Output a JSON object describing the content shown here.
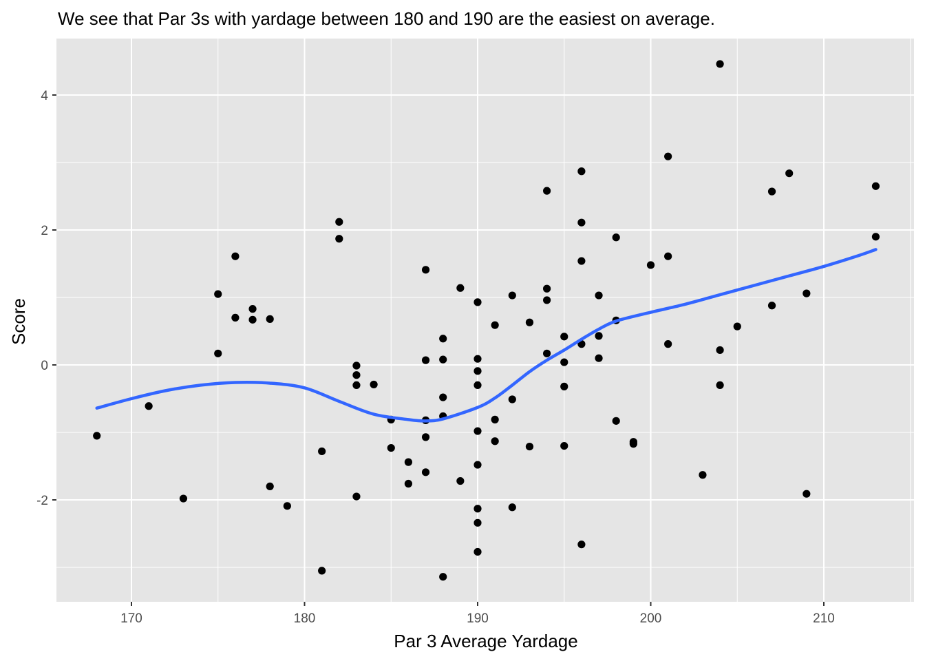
{
  "chart_data": {
    "type": "scatter",
    "title": "We see that Par 3s with yardage between 180 and 190 are the easiest on average.",
    "xlabel": "Par 3 Average Yardage",
    "ylabel": "Score",
    "xlim": [
      166,
      215
    ],
    "ylim": [
      -3.5,
      4.8
    ],
    "x_ticks": [
      170,
      180,
      190,
      200,
      210
    ],
    "y_ticks": [
      -2,
      0,
      2,
      4
    ],
    "grid": true,
    "legend": "none",
    "colors": {
      "panel_background": "#e5e5e5",
      "grid": "#ffffff",
      "points": "#000000",
      "smooth_line": "#3366ff",
      "tick_label": "#4d4d4d"
    },
    "points": [
      {
        "x": 168,
        "y": -1.05
      },
      {
        "x": 171,
        "y": -0.61
      },
      {
        "x": 173,
        "y": -1.98
      },
      {
        "x": 175,
        "y": 1.05
      },
      {
        "x": 175,
        "y": 0.17
      },
      {
        "x": 176,
        "y": 1.61
      },
      {
        "x": 176,
        "y": 0.7
      },
      {
        "x": 177,
        "y": 0.83
      },
      {
        "x": 177,
        "y": 0.67
      },
      {
        "x": 178,
        "y": 0.68
      },
      {
        "x": 178,
        "y": -1.8
      },
      {
        "x": 179,
        "y": -2.09
      },
      {
        "x": 181,
        "y": -1.28
      },
      {
        "x": 181,
        "y": -3.05
      },
      {
        "x": 182,
        "y": 2.12
      },
      {
        "x": 182,
        "y": 1.87
      },
      {
        "x": 183,
        "y": -0.01
      },
      {
        "x": 183,
        "y": -0.15
      },
      {
        "x": 183,
        "y": -0.3
      },
      {
        "x": 183,
        "y": -1.95
      },
      {
        "x": 184,
        "y": -0.29
      },
      {
        "x": 185,
        "y": -0.81
      },
      {
        "x": 185,
        "y": -1.23
      },
      {
        "x": 186,
        "y": -1.44
      },
      {
        "x": 186,
        "y": -1.76
      },
      {
        "x": 187,
        "y": 1.41
      },
      {
        "x": 187,
        "y": 0.07
      },
      {
        "x": 187,
        "y": -0.82
      },
      {
        "x": 187,
        "y": -1.07
      },
      {
        "x": 187,
        "y": -1.59
      },
      {
        "x": 188,
        "y": 0.39
      },
      {
        "x": 188,
        "y": 0.08
      },
      {
        "x": 188,
        "y": -0.48
      },
      {
        "x": 188,
        "y": -0.76
      },
      {
        "x": 188,
        "y": -3.14
      },
      {
        "x": 189,
        "y": 1.14
      },
      {
        "x": 189,
        "y": -1.72
      },
      {
        "x": 190,
        "y": 0.93
      },
      {
        "x": 190,
        "y": 0.09
      },
      {
        "x": 190,
        "y": -0.09
      },
      {
        "x": 190,
        "y": -0.3
      },
      {
        "x": 190,
        "y": -0.98
      },
      {
        "x": 190,
        "y": -1.48
      },
      {
        "x": 190,
        "y": -2.13
      },
      {
        "x": 190,
        "y": -2.34
      },
      {
        "x": 190,
        "y": -2.77
      },
      {
        "x": 191,
        "y": 0.59
      },
      {
        "x": 191,
        "y": -0.81
      },
      {
        "x": 191,
        "y": -1.13
      },
      {
        "x": 192,
        "y": 1.03
      },
      {
        "x": 192,
        "y": -0.51
      },
      {
        "x": 192,
        "y": -2.11
      },
      {
        "x": 193,
        "y": 0.63
      },
      {
        "x": 193,
        "y": -1.21
      },
      {
        "x": 194,
        "y": 2.58
      },
      {
        "x": 194,
        "y": 1.13
      },
      {
        "x": 194,
        "y": 0.96
      },
      {
        "x": 194,
        "y": 0.17
      },
      {
        "x": 195,
        "y": 0.42
      },
      {
        "x": 195,
        "y": 0.04
      },
      {
        "x": 195,
        "y": -0.32
      },
      {
        "x": 195,
        "y": -1.2
      },
      {
        "x": 196,
        "y": 2.87
      },
      {
        "x": 196,
        "y": 2.11
      },
      {
        "x": 196,
        "y": 1.54
      },
      {
        "x": 196,
        "y": 0.31
      },
      {
        "x": 196,
        "y": -2.66
      },
      {
        "x": 197,
        "y": 1.03
      },
      {
        "x": 197,
        "y": 0.43
      },
      {
        "x": 197,
        "y": 0.1
      },
      {
        "x": 198,
        "y": 1.89
      },
      {
        "x": 198,
        "y": 0.66
      },
      {
        "x": 198,
        "y": -0.83
      },
      {
        "x": 199,
        "y": -1.14
      },
      {
        "x": 199,
        "y": -1.17
      },
      {
        "x": 200,
        "y": 1.48
      },
      {
        "x": 201,
        "y": 3.09
      },
      {
        "x": 201,
        "y": 1.61
      },
      {
        "x": 201,
        "y": 0.31
      },
      {
        "x": 203,
        "y": -1.63
      },
      {
        "x": 204,
        "y": 4.46
      },
      {
        "x": 204,
        "y": 0.22
      },
      {
        "x": 204,
        "y": -0.3
      },
      {
        "x": 205,
        "y": 0.57
      },
      {
        "x": 207,
        "y": 2.57
      },
      {
        "x": 207,
        "y": 0.88
      },
      {
        "x": 208,
        "y": 2.84
      },
      {
        "x": 209,
        "y": 1.06
      },
      {
        "x": 209,
        "y": -1.91
      },
      {
        "x": 213,
        "y": 2.65
      },
      {
        "x": 213,
        "y": 1.9
      }
    ],
    "smooth": {
      "method": "loess",
      "x": [
        168,
        170,
        172,
        174,
        176,
        178,
        180,
        182,
        184,
        186,
        187,
        188,
        190,
        191,
        192,
        193,
        194,
        195,
        196,
        197,
        198,
        200,
        202,
        204,
        206,
        208,
        210,
        212,
        213
      ],
      "y": [
        -0.64,
        -0.5,
        -0.38,
        -0.3,
        -0.26,
        -0.27,
        -0.34,
        -0.54,
        -0.73,
        -0.81,
        -0.83,
        -0.8,
        -0.63,
        -0.49,
        -0.3,
        -0.1,
        0.07,
        0.22,
        0.38,
        0.53,
        0.65,
        0.78,
        0.9,
        1.04,
        1.18,
        1.32,
        1.46,
        1.62,
        1.71
      ]
    }
  }
}
